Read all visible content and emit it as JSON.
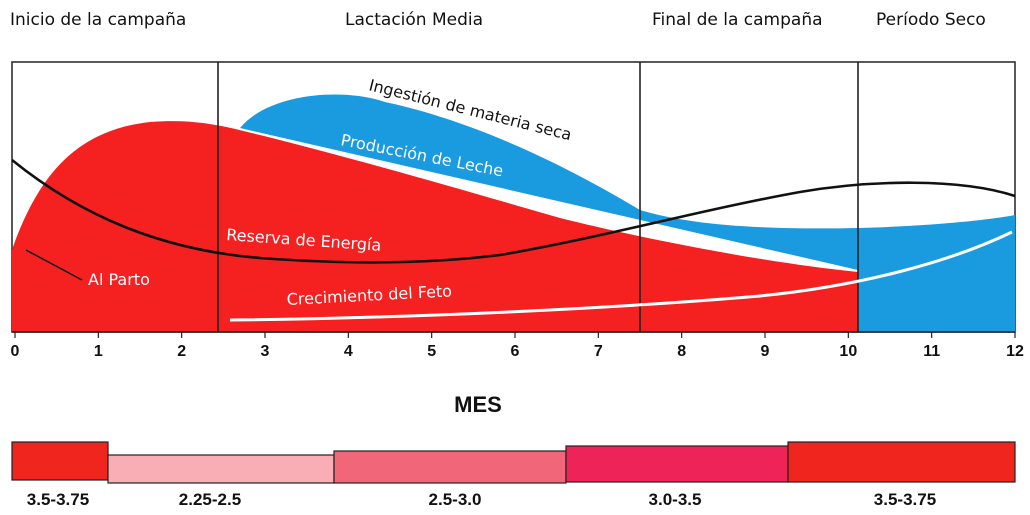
{
  "phases": [
    {
      "label": "Inicio de la campaña"
    },
    {
      "label": "Lactación Media"
    },
    {
      "label": "Final de la campaña"
    },
    {
      "label": "Período Seco"
    }
  ],
  "curves": {
    "intake_label": "Ingestión de materia seca",
    "milk_label": "Producción de Leche",
    "energy_label": "Reserva de Energía",
    "fetus_label": "Crecimiento del Feto",
    "birth_label": "Al Parto"
  },
  "axis": {
    "ticks": [
      "0",
      "1",
      "2",
      "3",
      "4",
      "5",
      "6",
      "7",
      "8",
      "9",
      "10",
      "11",
      "12"
    ],
    "title": "MES"
  },
  "condition_bar": [
    {
      "label": "3.5-3.75",
      "color": "#f0251e"
    },
    {
      "label": "2.25-2.5",
      "color": "#f8aeb4"
    },
    {
      "label": "2.5-3.0",
      "color": "#f26679"
    },
    {
      "label": "3.0-3.5",
      "color": "#ee2459"
    },
    {
      "label": "3.5-3.75",
      "color": "#f0251e"
    }
  ],
  "colors": {
    "energy": "#f52020",
    "milk": "#1a9be0",
    "intake_line": "#111111",
    "fetus_line": "#ffffff",
    "divider": "#222222"
  }
}
